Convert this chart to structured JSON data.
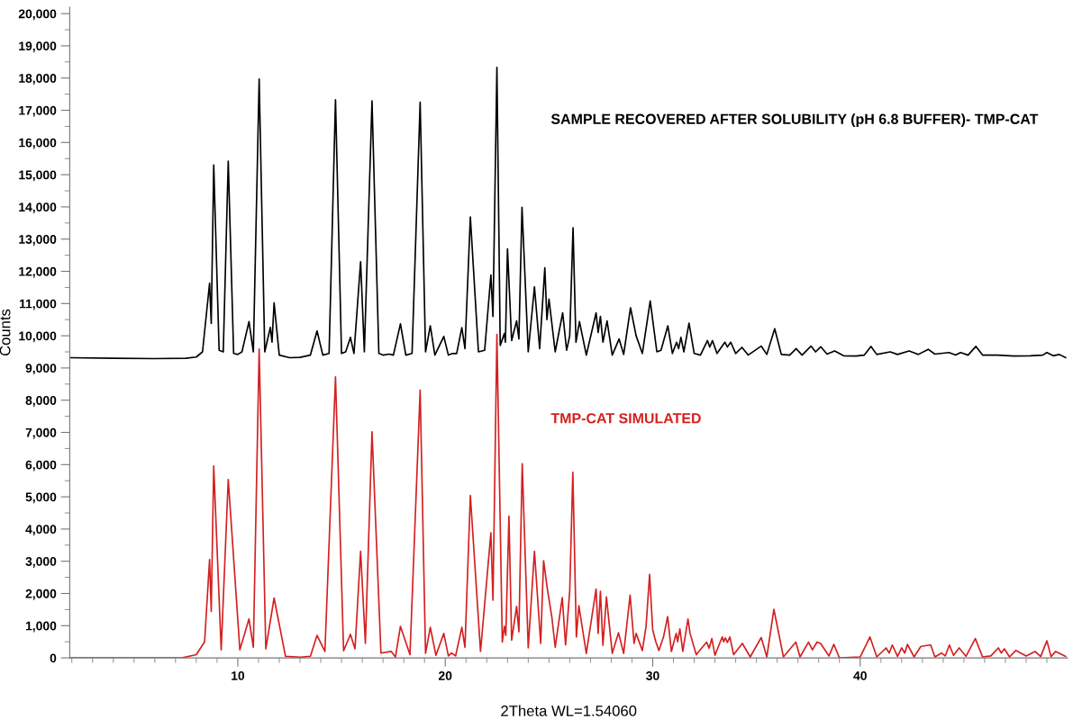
{
  "chart_data": {
    "type": "line",
    "xlabel": "2Theta WL=1.54060",
    "ylabel": "Counts",
    "xlim": [
      1.9,
      50
    ],
    "ylim": [
      0,
      20200
    ],
    "grid": false,
    "legend": false,
    "marker": "none",
    "line_style": "solid",
    "xticks": [
      {
        "value": 2,
        "label": null
      },
      {
        "value": 3,
        "label": null
      },
      {
        "value": 4,
        "label": null
      },
      {
        "value": 5,
        "label": null
      },
      {
        "value": 6,
        "label": null
      },
      {
        "value": 7,
        "label": null
      },
      {
        "value": 8,
        "label": null
      },
      {
        "value": 9,
        "label": null
      },
      10,
      {
        "value": 11,
        "label": null
      },
      {
        "value": 12,
        "label": null
      },
      {
        "value": 13,
        "label": null
      },
      {
        "value": 14,
        "label": null
      },
      {
        "value": 15,
        "label": null
      },
      {
        "value": 16,
        "label": null
      },
      {
        "value": 17,
        "label": null
      },
      {
        "value": 18,
        "label": null
      },
      {
        "value": 19,
        "label": null
      },
      20,
      {
        "value": 21,
        "label": null
      },
      {
        "value": 22,
        "label": null
      },
      {
        "value": 23,
        "label": null
      },
      {
        "value": 24,
        "label": null
      },
      {
        "value": 25,
        "label": null
      },
      {
        "value": 26,
        "label": null
      },
      {
        "value": 27,
        "label": null
      },
      {
        "value": 28,
        "label": null
      },
      {
        "value": 29,
        "label": null
      },
      30,
      {
        "value": 31,
        "label": null
      },
      {
        "value": 32,
        "label": null
      },
      {
        "value": 33,
        "label": null
      },
      {
        "value": 34,
        "label": null
      },
      {
        "value": 35,
        "label": null
      },
      {
        "value": 36,
        "label": null
      },
      {
        "value": 37,
        "label": null
      },
      {
        "value": 38,
        "label": null
      },
      {
        "value": 39,
        "label": null
      },
      40,
      {
        "value": 41,
        "label": null
      },
      {
        "value": 42,
        "label": null
      },
      {
        "value": 43,
        "label": null
      },
      {
        "value": 44,
        "label": null
      },
      {
        "value": 45,
        "label": null
      },
      {
        "value": 46,
        "label": null
      },
      {
        "value": 47,
        "label": null
      },
      {
        "value": 48,
        "label": null
      },
      {
        "value": 49,
        "label": null
      }
    ],
    "yticks": [
      0,
      {
        "value": 500,
        "label": null
      },
      {
        "value": 1000,
        "label": "1,000"
      },
      {
        "value": 1500,
        "label": null
      },
      {
        "value": 2000,
        "label": "2,000"
      },
      {
        "value": 2500,
        "label": null
      },
      {
        "value": 3000,
        "label": "3,000"
      },
      {
        "value": 3500,
        "label": null
      },
      {
        "value": 4000,
        "label": "4,000"
      },
      {
        "value": 4500,
        "label": null
      },
      {
        "value": 5000,
        "label": "5,000"
      },
      {
        "value": 5500,
        "label": null
      },
      {
        "value": 6000,
        "label": "6,000"
      },
      {
        "value": 6500,
        "label": null
      },
      {
        "value": 7000,
        "label": "7,000"
      },
      {
        "value": 7500,
        "label": null
      },
      {
        "value": 8000,
        "label": "8,000"
      },
      {
        "value": 8500,
        "label": null
      },
      {
        "value": 9000,
        "label": "9,000"
      },
      {
        "value": 9500,
        "label": null
      },
      {
        "value": 10000,
        "label": "10,000"
      },
      {
        "value": 10500,
        "label": null
      },
      {
        "value": 11000,
        "label": "11,000"
      },
      {
        "value": 11500,
        "label": null
      },
      {
        "value": 12000,
        "label": "12,000"
      },
      {
        "value": 12500,
        "label": null
      },
      {
        "value": 13000,
        "label": "13,000"
      },
      {
        "value": 13500,
        "label": null
      },
      {
        "value": 14000,
        "label": "14,000"
      },
      {
        "value": 14500,
        "label": null
      },
      {
        "value": 15000,
        "label": "15,000"
      },
      {
        "value": 15500,
        "label": null
      },
      {
        "value": 16000,
        "label": "16,000"
      },
      {
        "value": 16500,
        "label": null
      },
      {
        "value": 17000,
        "label": "17,000"
      },
      {
        "value": 17500,
        "label": null
      },
      {
        "value": 18000,
        "label": "18,000"
      },
      {
        "value": 18500,
        "label": null
      },
      {
        "value": 19000,
        "label": "19,000"
      },
      {
        "value": 19500,
        "label": null
      },
      {
        "value": 20000,
        "label": "20,000"
      }
    ],
    "series": [
      {
        "name": "SAMPLE RECOVERED AFTER SOLUBILITY (pH 6.8 BUFFER)- TMP-CAT",
        "color": "#000000",
        "x": [
          1.9,
          4,
          6,
          7.5,
          8.0,
          8.3,
          8.64,
          8.72,
          8.84,
          9.1,
          9.3,
          9.54,
          9.8,
          10.0,
          10.2,
          10.54,
          10.75,
          11.03,
          11.3,
          11.57,
          11.65,
          11.75,
          12.0,
          12.5,
          13.0,
          13.5,
          13.82,
          14.1,
          14.4,
          14.71,
          15.0,
          15.2,
          15.43,
          15.6,
          15.92,
          16.1,
          16.47,
          16.8,
          17.0,
          17.3,
          17.5,
          17.84,
          18.1,
          18.4,
          18.79,
          19.05,
          19.28,
          19.5,
          19.93,
          20.15,
          20.35,
          20.55,
          20.8,
          20.95,
          21.21,
          21.6,
          21.9,
          22.2,
          22.3,
          22.49,
          22.65,
          22.85,
          22.9,
          23.0,
          23.2,
          23.44,
          23.55,
          23.7,
          24.0,
          24.3,
          24.55,
          24.8,
          24.9,
          25.0,
          25.3,
          25.66,
          25.85,
          26.0,
          26.16,
          26.3,
          26.47,
          26.8,
          27.27,
          27.37,
          27.48,
          27.6,
          27.8,
          28.05,
          28.38,
          28.6,
          28.93,
          29.2,
          29.5,
          29.88,
          30.2,
          30.4,
          30.73,
          30.95,
          31.15,
          31.25,
          31.36,
          31.5,
          31.75,
          32.0,
          32.3,
          32.64,
          32.75,
          32.88,
          33.1,
          33.48,
          33.6,
          33.76,
          34.0,
          34.3,
          34.6,
          35.23,
          35.5,
          35.88,
          36.2,
          36.6,
          36.92,
          37.2,
          37.63,
          37.85,
          38.1,
          38.4,
          38.77,
          39.2,
          39.8,
          40.2,
          40.52,
          40.8,
          41.45,
          41.8,
          42.36,
          42.8,
          43.28,
          43.6,
          44.28,
          44.6,
          44.84,
          45.2,
          45.58,
          45.9,
          46.6,
          47.4,
          48.2,
          48.8,
          49.0,
          49.3,
          49.6,
          49.9
        ],
        "values": [
          9320,
          9300,
          9290,
          9300,
          9340,
          9500,
          11630,
          10380,
          15300,
          9550,
          9500,
          15420,
          9450,
          9420,
          9500,
          10440,
          9500,
          17970,
          9500,
          10260,
          9800,
          11020,
          9400,
          9320,
          9330,
          9400,
          10150,
          9400,
          9450,
          17330,
          9450,
          9500,
          9950,
          9450,
          12300,
          9500,
          17290,
          9450,
          9400,
          9430,
          9400,
          10370,
          9400,
          9450,
          17250,
          9500,
          10310,
          9400,
          9980,
          9400,
          9450,
          9450,
          10250,
          9600,
          13690,
          9500,
          9550,
          11890,
          10600,
          18330,
          9700,
          10070,
          9800,
          12700,
          9850,
          10460,
          9900,
          13990,
          9500,
          11520,
          9600,
          12110,
          10500,
          11140,
          9500,
          10710,
          9550,
          10000,
          13350,
          9800,
          10440,
          9400,
          10710,
          10100,
          10600,
          9800,
          10460,
          9400,
          9900,
          9420,
          10870,
          10000,
          9450,
          11080,
          9500,
          9550,
          10310,
          9450,
          9800,
          9600,
          9950,
          9500,
          10390,
          9450,
          9400,
          9850,
          9650,
          9850,
          9450,
          9800,
          9650,
          9800,
          9450,
          9640,
          9400,
          9680,
          9420,
          10220,
          9420,
          9400,
          9600,
          9400,
          9680,
          9500,
          9660,
          9430,
          9530,
          9380,
          9370,
          9400,
          9670,
          9420,
          9500,
          9420,
          9530,
          9420,
          9580,
          9430,
          9480,
          9400,
          9480,
          9400,
          9670,
          9400,
          9400,
          9370,
          9380,
          9400,
          9480,
          9380,
          9420,
          9320
        ]
      },
      {
        "name": "TMP-CAT SIMULATED",
        "color": "#d42020",
        "type": "line",
        "x": [
          1.9,
          5,
          7.3,
          8.0,
          8.4,
          8.64,
          8.72,
          8.84,
          9.2,
          9.54,
          10.1,
          10.54,
          10.75,
          11.03,
          11.35,
          11.75,
          12.3,
          13.0,
          13.5,
          13.82,
          14.2,
          14.71,
          15.1,
          15.43,
          15.65,
          15.92,
          16.15,
          16.47,
          16.9,
          17.4,
          17.6,
          17.84,
          18.3,
          18.79,
          19.05,
          19.28,
          19.55,
          19.93,
          20.15,
          20.3,
          20.5,
          20.8,
          20.95,
          21.21,
          21.7,
          22.2,
          22.3,
          22.49,
          22.75,
          22.85,
          22.92,
          23.07,
          23.2,
          23.44,
          23.55,
          23.71,
          24.0,
          24.3,
          24.6,
          24.74,
          24.93,
          25.14,
          25.3,
          25.64,
          25.8,
          26.0,
          26.15,
          26.32,
          26.44,
          26.8,
          27.27,
          27.37,
          27.48,
          27.6,
          27.77,
          28.05,
          28.35,
          28.6,
          28.91,
          29.1,
          29.2,
          29.5,
          29.68,
          29.85,
          30.0,
          30.15,
          30.3,
          30.52,
          30.72,
          30.9,
          31.13,
          31.2,
          31.31,
          31.45,
          31.7,
          31.8,
          32.1,
          32.6,
          32.72,
          32.85,
          33.0,
          33.35,
          33.42,
          33.5,
          33.6,
          33.72,
          33.9,
          34.32,
          34.7,
          35.23,
          35.5,
          35.84,
          36.3,
          36.9,
          37.1,
          37.51,
          37.7,
          37.92,
          38.09,
          38.5,
          38.73,
          39.0,
          40.0,
          40.47,
          40.8,
          41.25,
          41.4,
          41.55,
          41.8,
          42.0,
          42.15,
          42.28,
          42.6,
          42.92,
          43.15,
          43.4,
          43.6,
          43.92,
          44.1,
          44.3,
          44.5,
          44.77,
          45.1,
          45.55,
          45.9,
          46.3,
          46.66,
          46.8,
          46.95,
          47.2,
          47.5,
          48.0,
          48.43,
          48.7,
          49.0,
          49.2,
          49.42,
          49.9
        ],
        "values": [
          0,
          0,
          0,
          100,
          500,
          3050,
          1440,
          5960,
          250,
          5540,
          250,
          1210,
          330,
          9590,
          280,
          1860,
          50,
          20,
          50,
          700,
          200,
          8720,
          220,
          730,
          280,
          3310,
          450,
          7020,
          150,
          200,
          30,
          980,
          100,
          8310,
          140,
          950,
          80,
          760,
          60,
          150,
          60,
          950,
          330,
          5040,
          200,
          3880,
          1790,
          10040,
          490,
          980,
          700,
          4400,
          550,
          1600,
          810,
          6030,
          310,
          3310,
          450,
          3020,
          2100,
          1260,
          330,
          1870,
          400,
          2080,
          5760,
          650,
          1620,
          140,
          2140,
          760,
          2070,
          390,
          1890,
          140,
          780,
          140,
          1950,
          450,
          760,
          230,
          980,
          2590,
          870,
          500,
          230,
          650,
          1280,
          200,
          760,
          500,
          900,
          200,
          1210,
          760,
          100,
          490,
          300,
          600,
          80,
          650,
          500,
          620,
          480,
          650,
          100,
          450,
          30,
          630,
          30,
          1510,
          30,
          490,
          30,
          490,
          250,
          490,
          450,
          60,
          420,
          0,
          30,
          650,
          30,
          310,
          150,
          400,
          50,
          310,
          150,
          420,
          30,
          350,
          380,
          400,
          30,
          150,
          60,
          400,
          80,
          310,
          50,
          600,
          30,
          60,
          310,
          150,
          280,
          30,
          230,
          60,
          200,
          40,
          530,
          40,
          200,
          50
        ]
      }
    ]
  }
}
